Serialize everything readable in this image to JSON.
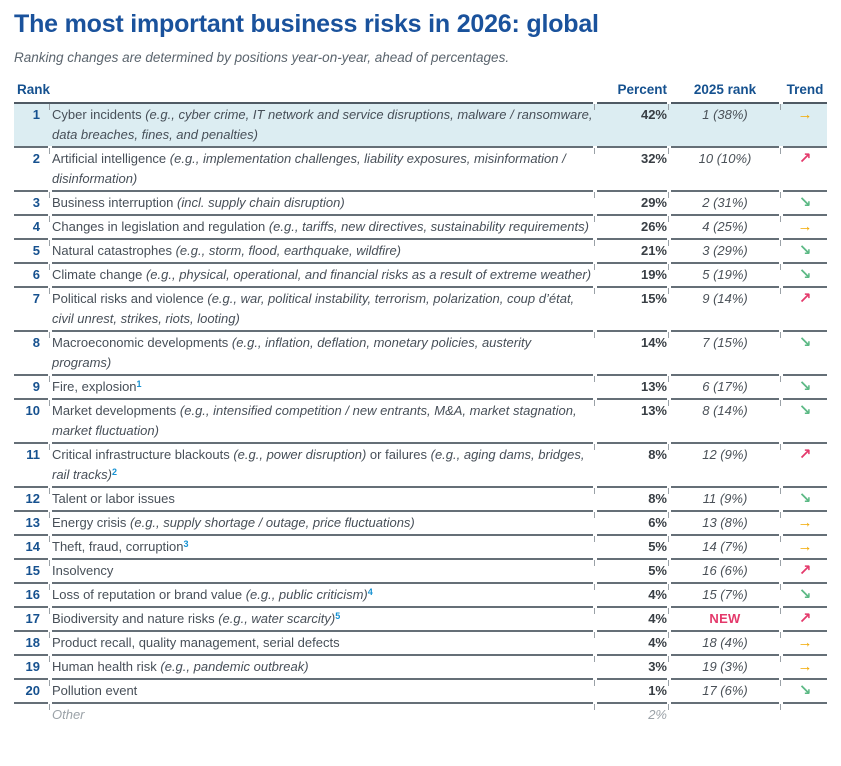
{
  "colors": {
    "title_blue": "#1A529C",
    "header_blue": "#15518F",
    "rank_blue": "#16518F",
    "trend_same": "#F2A900",
    "trend_up": "#E4396B",
    "trend_down": "#5CB985",
    "new_badge": "#E4396B",
    "highlight_bg": "#DCEDF2",
    "footnote_blue": "#1591D2",
    "muted": "#9BA2A8"
  },
  "chart_data": {
    "type": "table",
    "title": "The most important business risks in 2026: global",
    "subtitle": "Ranking changes are determined by positions year-on-year, ahead of percentages.",
    "columns": [
      "Rank",
      "Percent",
      "2025 rank",
      "Trend"
    ],
    "trend_glyphs": {
      "same": "→",
      "up": "↗",
      "down": "↘"
    },
    "rows": [
      {
        "rank": "1",
        "segments": [
          {
            "text": "Cyber incidents ",
            "style": "plain"
          },
          {
            "text": "(e.g., cyber crime, IT network and service disruptions, malware / ransomware, data breaches, fines, and penalties)",
            "style": "italic"
          }
        ],
        "percent": "42%",
        "prev": "1 (38%)",
        "trend": "same",
        "highlight": true
      },
      {
        "rank": "2",
        "segments": [
          {
            "text": "Artificial intelligence ",
            "style": "plain"
          },
          {
            "text": "(e.g., implementation challenges, liability exposures, misinformation / disinformation)",
            "style": "italic"
          }
        ],
        "percent": "32%",
        "prev": "10 (10%)",
        "trend": "up"
      },
      {
        "rank": "3",
        "segments": [
          {
            "text": "Business interruption ",
            "style": "plain"
          },
          {
            "text": "(incl. supply chain disruption)",
            "style": "italic"
          }
        ],
        "percent": "29%",
        "prev": "2 (31%)",
        "trend": "down"
      },
      {
        "rank": "4",
        "segments": [
          {
            "text": "Changes in legislation and regulation ",
            "style": "plain"
          },
          {
            "text": "(e.g., tariffs, new directives, sustainability requirements)",
            "style": "italic"
          }
        ],
        "percent": "26%",
        "prev": "4 (25%)",
        "trend": "same"
      },
      {
        "rank": "5",
        "segments": [
          {
            "text": "Natural catastrophes ",
            "style": "plain"
          },
          {
            "text": "(e.g., storm, flood, earthquake, wildfire)",
            "style": "italic"
          }
        ],
        "percent": "21%",
        "prev": "3 (29%)",
        "trend": "down"
      },
      {
        "rank": "6",
        "segments": [
          {
            "text": "Climate change ",
            "style": "plain"
          },
          {
            "text": "(e.g., physical, operational, and financial risks as a result of extreme weather)",
            "style": "italic"
          }
        ],
        "percent": "19%",
        "prev": "5 (19%)",
        "trend": "down"
      },
      {
        "rank": "7",
        "segments": [
          {
            "text": "Political risks and violence ",
            "style": "plain"
          },
          {
            "text": "(e.g., war, political instability, terrorism, polarization, coup d’état, civil unrest, strikes, riots, looting)",
            "style": "italic"
          }
        ],
        "percent": "15%",
        "prev": "9 (14%)",
        "trend": "up"
      },
      {
        "rank": "8",
        "segments": [
          {
            "text": "Macroeconomic developments ",
            "style": "plain"
          },
          {
            "text": "(e.g., inflation, deflation, monetary policies, austerity programs)",
            "style": "italic"
          }
        ],
        "percent": "14%",
        "prev": "7 (15%)",
        "trend": "down"
      },
      {
        "rank": "9",
        "segments": [
          {
            "text": "Fire, explosion",
            "style": "plain"
          },
          {
            "text": "1",
            "style": "sup"
          }
        ],
        "percent": "13%",
        "prev": "6 (17%)",
        "trend": "down"
      },
      {
        "rank": "10",
        "segments": [
          {
            "text": "Market developments ",
            "style": "plain"
          },
          {
            "text": "(e.g., intensified competition / new entrants, M&A, market stagnation, market fluctuation)",
            "style": "italic"
          }
        ],
        "percent": "13%",
        "prev": "8 (14%)",
        "trend": "down"
      },
      {
        "rank": "11",
        "segments": [
          {
            "text": "Critical infrastructure blackouts ",
            "style": "plain"
          },
          {
            "text": "(e.g., power disruption)",
            "style": "italic"
          },
          {
            "text": " or failures ",
            "style": "plain"
          },
          {
            "text": "(e.g., aging dams, bridges, rail tracks)",
            "style": "italic"
          },
          {
            "text": "2",
            "style": "sup"
          }
        ],
        "percent": "8%",
        "prev": "12 (9%)",
        "trend": "up"
      },
      {
        "rank": "12",
        "segments": [
          {
            "text": "Talent or labor issues",
            "style": "plain"
          }
        ],
        "percent": "8%",
        "prev": "11 (9%)",
        "trend": "down"
      },
      {
        "rank": "13",
        "segments": [
          {
            "text": "Energy crisis ",
            "style": "plain"
          },
          {
            "text": "(e.g., supply shortage / outage, price fluctuations)",
            "style": "italic"
          }
        ],
        "percent": "6%",
        "prev": "13 (8%)",
        "trend": "same"
      },
      {
        "rank": "14",
        "segments": [
          {
            "text": "Theft, fraud, corruption",
            "style": "plain"
          },
          {
            "text": "3",
            "style": "sup"
          }
        ],
        "percent": "5%",
        "prev": "14 (7%)",
        "trend": "same"
      },
      {
        "rank": "15",
        "segments": [
          {
            "text": "Insolvency",
            "style": "plain"
          }
        ],
        "percent": "5%",
        "prev": "16 (6%)",
        "trend": "up"
      },
      {
        "rank": "16",
        "segments": [
          {
            "text": "Loss of reputation or brand value ",
            "style": "plain"
          },
          {
            "text": "(e.g., public criticism)",
            "style": "italic"
          },
          {
            "text": "4",
            "style": "sup"
          }
        ],
        "percent": "4%",
        "prev": "15 (7%)",
        "trend": "down"
      },
      {
        "rank": "17",
        "segments": [
          {
            "text": "Biodiversity and nature risks ",
            "style": "plain"
          },
          {
            "text": "(e.g., water scarcity)",
            "style": "italic"
          },
          {
            "text": "5",
            "style": "sup"
          }
        ],
        "percent": "4%",
        "prev": "NEW",
        "trend": "up"
      },
      {
        "rank": "18",
        "segments": [
          {
            "text": "Product recall, quality management, serial defects",
            "style": "plain"
          }
        ],
        "percent": "4%",
        "prev": "18 (4%)",
        "trend": "same"
      },
      {
        "rank": "19",
        "segments": [
          {
            "text": "Human health risk ",
            "style": "plain"
          },
          {
            "text": "(e.g., pandemic outbreak)",
            "style": "italic"
          }
        ],
        "percent": "3%",
        "prev": "19 (3%)",
        "trend": "same"
      },
      {
        "rank": "20",
        "segments": [
          {
            "text": "Pollution event",
            "style": "plain"
          }
        ],
        "percent": "1%",
        "prev": "17 (6%)",
        "trend": "down"
      },
      {
        "rank": "",
        "segments": [
          {
            "text": "Other",
            "style": "plain"
          }
        ],
        "percent": "2%",
        "prev": "",
        "trend": "",
        "other": true
      }
    ]
  }
}
